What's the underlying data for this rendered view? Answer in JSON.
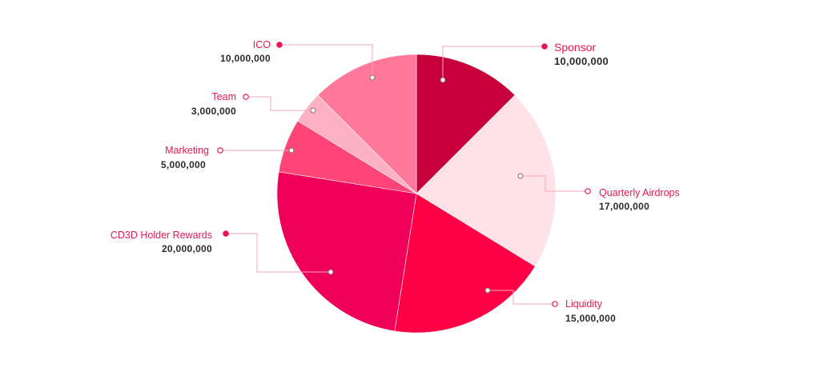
{
  "chart_data": {
    "type": "pie",
    "title": "",
    "start_at": "12 o'clock, clockwise",
    "slices": [
      {
        "label": "Sponsor",
        "value_text": "10,000,000",
        "value": 10000000,
        "color": "#C8003A"
      },
      {
        "label": "Quarterly Airdrops",
        "value_text": "17,000,000",
        "value": 17000000,
        "color": "#FFE1E8"
      },
      {
        "label": "Liquidity",
        "value_text": "15,000,000",
        "value": 15000000,
        "color": "#FF0044"
      },
      {
        "label": "CD3D Holder Rewards",
        "value_text": "20,000,000",
        "value": 20000000,
        "color": "#EF0059"
      },
      {
        "label": "Marketing",
        "value_text": "5,000,000",
        "value": 5000000,
        "color": "#FF4575"
      },
      {
        "label": "Team",
        "value_text": "3,000,000",
        "value": 3000000,
        "color": "#FFB1C4"
      },
      {
        "label": "ICO",
        "value_text": "10,000,000",
        "value": 10000000,
        "color": "#FF7799"
      }
    ],
    "label_color": "#E8174F",
    "value_color": "#2B2B2B",
    "leader_color": "#F4A6BA"
  }
}
